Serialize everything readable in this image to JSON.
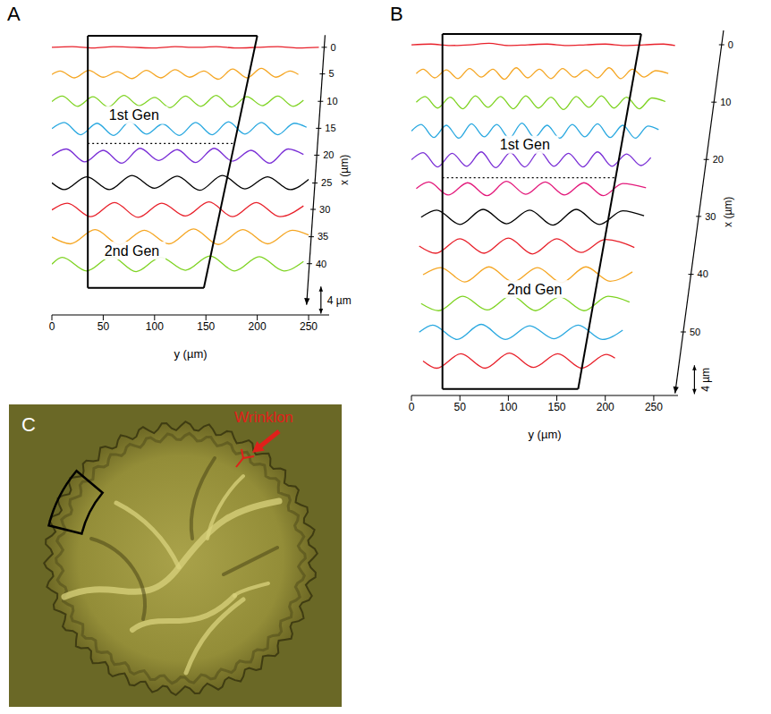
{
  "chart_data": [
    {
      "panel": "A",
      "type": "line",
      "xlabel": "y (µm)",
      "xlim": [
        0,
        270
      ],
      "xticks": [
        0,
        50,
        100,
        150,
        200,
        250
      ],
      "ylim": [
        -7.5,
        34.5
      ],
      "tick_labels": "x",
      "trace_axis": {
        "label": "x (µm)",
        "ticks": [
          0,
          5,
          10,
          15,
          20,
          25,
          30,
          35,
          40
        ]
      },
      "scale_bar": {
        "value": 4,
        "label": "4 µm"
      },
      "outline": [
        [
          35,
          33.7
        ],
        [
          200,
          33.7
        ],
        [
          148,
          -3.5
        ],
        [
          35,
          -3.5
        ]
      ],
      "boundary": 17.8,
      "annotations": [
        "1st Gen",
        "2nd Gen"
      ],
      "series": [
        {
          "x_position": 0,
          "color": "#e8202a",
          "x": [
            0,
            20,
            40,
            60,
            80,
            100,
            120,
            140,
            160,
            180,
            200,
            220,
            240,
            260
          ],
          "values": [
            32.0,
            32.1,
            31.9,
            32.1,
            32.0,
            31.9,
            32.1,
            32.0,
            32.1,
            31.9,
            32.0,
            32.1,
            31.9,
            32.0
          ]
        },
        {
          "x_position": 5,
          "color": "#f5a623",
          "x": [
            0,
            8,
            22,
            36,
            50,
            64,
            78,
            92,
            106,
            120,
            134,
            148,
            162,
            176,
            190,
            204,
            218,
            232,
            240
          ],
          "values": [
            28.0,
            28.5,
            27.5,
            28.6,
            27.6,
            28.4,
            27.4,
            28.6,
            27.5,
            28.7,
            27.6,
            28.5,
            27.3,
            28.8,
            27.5,
            28.9,
            27.6,
            28.5,
            28.0
          ]
        },
        {
          "x_position": 10,
          "color": "#7ed321",
          "x": [
            0,
            10,
            25,
            40,
            55,
            70,
            85,
            100,
            115,
            130,
            145,
            160,
            175,
            190,
            205,
            220,
            235,
            245
          ],
          "values": [
            24.0,
            24.8,
            23.3,
            24.7,
            23.2,
            24.9,
            23.4,
            24.6,
            23.1,
            24.8,
            23.3,
            24.9,
            23.2,
            24.7,
            23.4,
            24.8,
            23.3,
            24.2
          ]
        },
        {
          "x_position": 15,
          "color": "#29a8e0",
          "x": [
            0,
            12,
            28,
            44,
            60,
            76,
            92,
            108,
            124,
            140,
            156,
            172,
            188,
            204,
            220,
            236,
            248
          ],
          "values": [
            20.0,
            20.9,
            19.1,
            20.8,
            19.0,
            21.0,
            19.2,
            20.7,
            19.0,
            20.9,
            19.1,
            21.0,
            19.2,
            20.9,
            19.1,
            20.8,
            20.2
          ]
        },
        {
          "x_position": 20,
          "color": "#7a2fd6",
          "x": [
            0,
            14,
            32,
            50,
            68,
            86,
            104,
            122,
            140,
            158,
            176,
            194,
            212,
            230,
            245
          ],
          "values": [
            16.0,
            17.0,
            15.1,
            16.8,
            14.9,
            17.1,
            15.3,
            16.9,
            15.0,
            17.1,
            15.2,
            16.8,
            14.9,
            17.0,
            16.2
          ]
        },
        {
          "x_position": 25,
          "color": "#000000",
          "x": [
            0,
            12,
            34,
            56,
            78,
            100,
            122,
            144,
            166,
            188,
            210,
            232,
            250
          ],
          "values": [
            12.0,
            11.0,
            12.9,
            11.0,
            13.1,
            11.2,
            13.0,
            10.9,
            13.1,
            11.1,
            12.9,
            11.0,
            12.5
          ]
        },
        {
          "x_position": 30,
          "color": "#e8202a",
          "x": [
            0,
            15,
            38,
            61,
            84,
            107,
            130,
            153,
            176,
            199,
            222,
            245
          ],
          "values": [
            8.0,
            9.0,
            7.0,
            9.1,
            6.9,
            9.0,
            7.1,
            9.2,
            7.0,
            9.1,
            7.0,
            8.6
          ]
        },
        {
          "x_position": 35,
          "color": "#f5a623",
          "x": [
            0,
            18,
            42,
            66,
            90,
            114,
            138,
            162,
            186,
            210,
            234,
            250
          ],
          "values": [
            4.0,
            3.0,
            5.1,
            2.9,
            5.0,
            3.0,
            5.2,
            2.9,
            5.1,
            3.0,
            5.0,
            4.3
          ]
        },
        {
          "x_position": 40,
          "color": "#7ed321",
          "x": [
            0,
            10,
            34,
            58,
            82,
            106,
            130,
            154,
            178,
            202,
            226,
            245
          ],
          "values": [
            0.0,
            1.0,
            -1.0,
            1.1,
            -1.1,
            1.0,
            -0.9,
            1.2,
            -1.0,
            1.1,
            -1.0,
            0.4
          ]
        }
      ]
    },
    {
      "panel": "B",
      "type": "line",
      "xlabel": "y (µm)",
      "xlim": [
        0,
        275
      ],
      "xticks": [
        0,
        50,
        100,
        150,
        200,
        250
      ],
      "ylim": [
        -4.8,
        46
      ],
      "tick_labels": "x",
      "trace_axis": {
        "label": "x (µm)",
        "ticks": [
          0,
          10,
          20,
          30,
          40,
          50
        ]
      },
      "scale_bar": {
        "value": 4,
        "label": "4 µm"
      },
      "outline": [
        [
          32,
          45.5
        ],
        [
          237,
          45.5
        ],
        [
          172,
          -3.9
        ],
        [
          32,
          -3.9
        ]
      ],
      "boundary": 25.5,
      "annotations": [
        "1st Gen",
        "2nd Gen"
      ],
      "series": [
        {
          "x_position": 0,
          "color": "#e8202a",
          "x": [
            0,
            20,
            40,
            60,
            80,
            100,
            120,
            140,
            160,
            180,
            200,
            220,
            240,
            260,
            272
          ],
          "values": [
            44.0,
            44.1,
            43.9,
            44.0,
            44.2,
            43.9,
            44.0,
            44.1,
            43.9,
            44.0,
            44.1,
            43.9,
            44.0,
            44.1,
            43.9
          ]
        },
        {
          "x_position": 5,
          "color": "#f5a623",
          "x": [
            5,
            12,
            24,
            36,
            48,
            60,
            72,
            84,
            96,
            108,
            120,
            132,
            144,
            156,
            168,
            180,
            192,
            204,
            216,
            228,
            240,
            252,
            265
          ],
          "values": [
            40.0,
            40.6,
            39.4,
            40.5,
            39.3,
            40.7,
            39.5,
            40.6,
            39.2,
            40.8,
            39.4,
            40.6,
            39.3,
            40.7,
            39.5,
            40.5,
            39.4,
            40.8,
            39.3,
            40.6,
            39.5,
            40.4,
            40.0
          ]
        },
        {
          "x_position": 10,
          "color": "#7ed321",
          "x": [
            5,
            14,
            27,
            40,
            53,
            66,
            79,
            92,
            105,
            118,
            131,
            144,
            157,
            170,
            183,
            196,
            209,
            222,
            235,
            248,
            262
          ],
          "values": [
            36.0,
            36.8,
            35.2,
            36.7,
            35.1,
            36.9,
            35.3,
            36.8,
            35.1,
            36.9,
            35.2,
            36.7,
            35.0,
            36.8,
            35.3,
            36.9,
            35.2,
            36.7,
            35.1,
            36.6,
            36.1
          ]
        },
        {
          "x_position": 15,
          "color": "#29a8e0",
          "x": [
            0,
            10,
            23,
            36,
            49,
            62,
            75,
            88,
            101,
            114,
            127,
            140,
            153,
            166,
            179,
            192,
            205,
            218,
            231,
            244,
            255
          ],
          "values": [
            32.0,
            32.9,
            31.1,
            32.8,
            31.0,
            33.0,
            31.2,
            32.9,
            31.0,
            33.1,
            31.1,
            32.8,
            31.0,
            32.9,
            31.2,
            33.0,
            31.1,
            32.8,
            31.0,
            32.7,
            32.2
          ]
        },
        {
          "x_position": 20,
          "color": "#7a2fd6",
          "x": [
            0,
            12,
            27,
            42,
            57,
            72,
            87,
            102,
            117,
            132,
            147,
            162,
            177,
            192,
            207,
            222,
            237,
            247
          ],
          "values": [
            28.0,
            29.0,
            27.0,
            28.9,
            27.1,
            29.1,
            26.9,
            29.0,
            27.0,
            29.2,
            27.1,
            28.9,
            27.0,
            29.1,
            27.1,
            28.8,
            27.2,
            28.3
          ]
        },
        {
          "x_position": 25,
          "color": "#e3197b",
          "x": [
            5,
            18,
            38,
            58,
            78,
            98,
            118,
            138,
            158,
            178,
            198,
            218,
            242
          ],
          "values": [
            24.0,
            24.9,
            23.1,
            24.8,
            23.0,
            25.0,
            23.2,
            24.9,
            23.1,
            24.8,
            23.0,
            24.7,
            24.1
          ]
        },
        {
          "x_position": 30,
          "color": "#000000",
          "x": [
            10,
            26,
            50,
            74,
            98,
            122,
            146,
            170,
            194,
            218,
            240
          ],
          "values": [
            20.0,
            21.0,
            19.0,
            21.1,
            19.1,
            21.0,
            18.9,
            21.1,
            19.0,
            20.9,
            20.2
          ]
        },
        {
          "x_position": 35,
          "color": "#e8202a",
          "x": [
            8,
            25,
            50,
            75,
            100,
            125,
            150,
            175,
            200,
            230
          ],
          "values": [
            16.0,
            15.0,
            17.0,
            15.0,
            17.1,
            14.9,
            17.0,
            15.1,
            16.9,
            15.8
          ]
        },
        {
          "x_position": 40,
          "color": "#f5a623",
          "x": [
            12,
            30,
            55,
            80,
            105,
            130,
            155,
            180,
            205,
            228
          ],
          "values": [
            12.0,
            13.0,
            11.0,
            13.1,
            11.0,
            13.0,
            10.9,
            13.1,
            11.1,
            12.4
          ]
        },
        {
          "x_position": 45,
          "color": "#7ed321",
          "x": [
            10,
            28,
            53,
            78,
            103,
            128,
            153,
            178,
            203,
            225
          ],
          "values": [
            8.0,
            7.0,
            9.0,
            7.1,
            9.1,
            7.0,
            8.9,
            7.0,
            9.0,
            8.2
          ]
        },
        {
          "x_position": 50,
          "color": "#29a8e0",
          "x": [
            8,
            22,
            47,
            72,
            97,
            122,
            147,
            172,
            197,
            218
          ],
          "values": [
            4.0,
            5.0,
            3.0,
            5.1,
            3.0,
            4.9,
            3.1,
            5.0,
            3.0,
            4.3
          ]
        },
        {
          "x_position": 55,
          "color": "#e8202a",
          "x": [
            12,
            26,
            51,
            76,
            101,
            126,
            151,
            176,
            201,
            210
          ],
          "values": [
            0.0,
            -1.0,
            1.0,
            -1.0,
            1.1,
            -0.9,
            1.0,
            -1.0,
            0.9,
            0.4
          ]
        }
      ]
    }
  ],
  "photo": {
    "panel": "C",
    "annotation": "Wrinklon"
  }
}
